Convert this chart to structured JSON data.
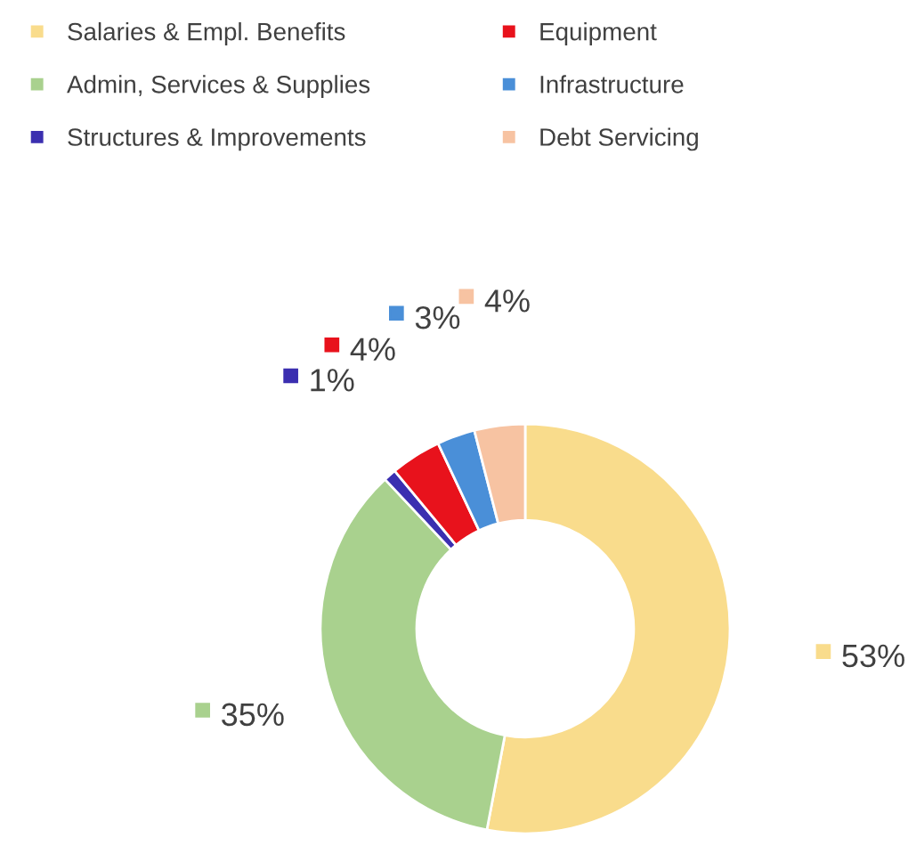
{
  "chart_data": {
    "type": "donut",
    "categories": [
      "Salaries & Empl. Benefits",
      "Admin, Services & Supplies",
      "Structures & Improvements",
      "Equipment",
      "Infrastructure",
      "Debt Servicing"
    ],
    "values": [
      53,
      35,
      1,
      4,
      3,
      4
    ],
    "colors": [
      "#f9dc8c",
      "#a9d18e",
      "#3b2fb0",
      "#e8121c",
      "#4a8fd8",
      "#f7c3a2"
    ],
    "value_labels": [
      "53%",
      "35%",
      "1%",
      "4%",
      "3%",
      "4%"
    ],
    "legend": "top"
  }
}
